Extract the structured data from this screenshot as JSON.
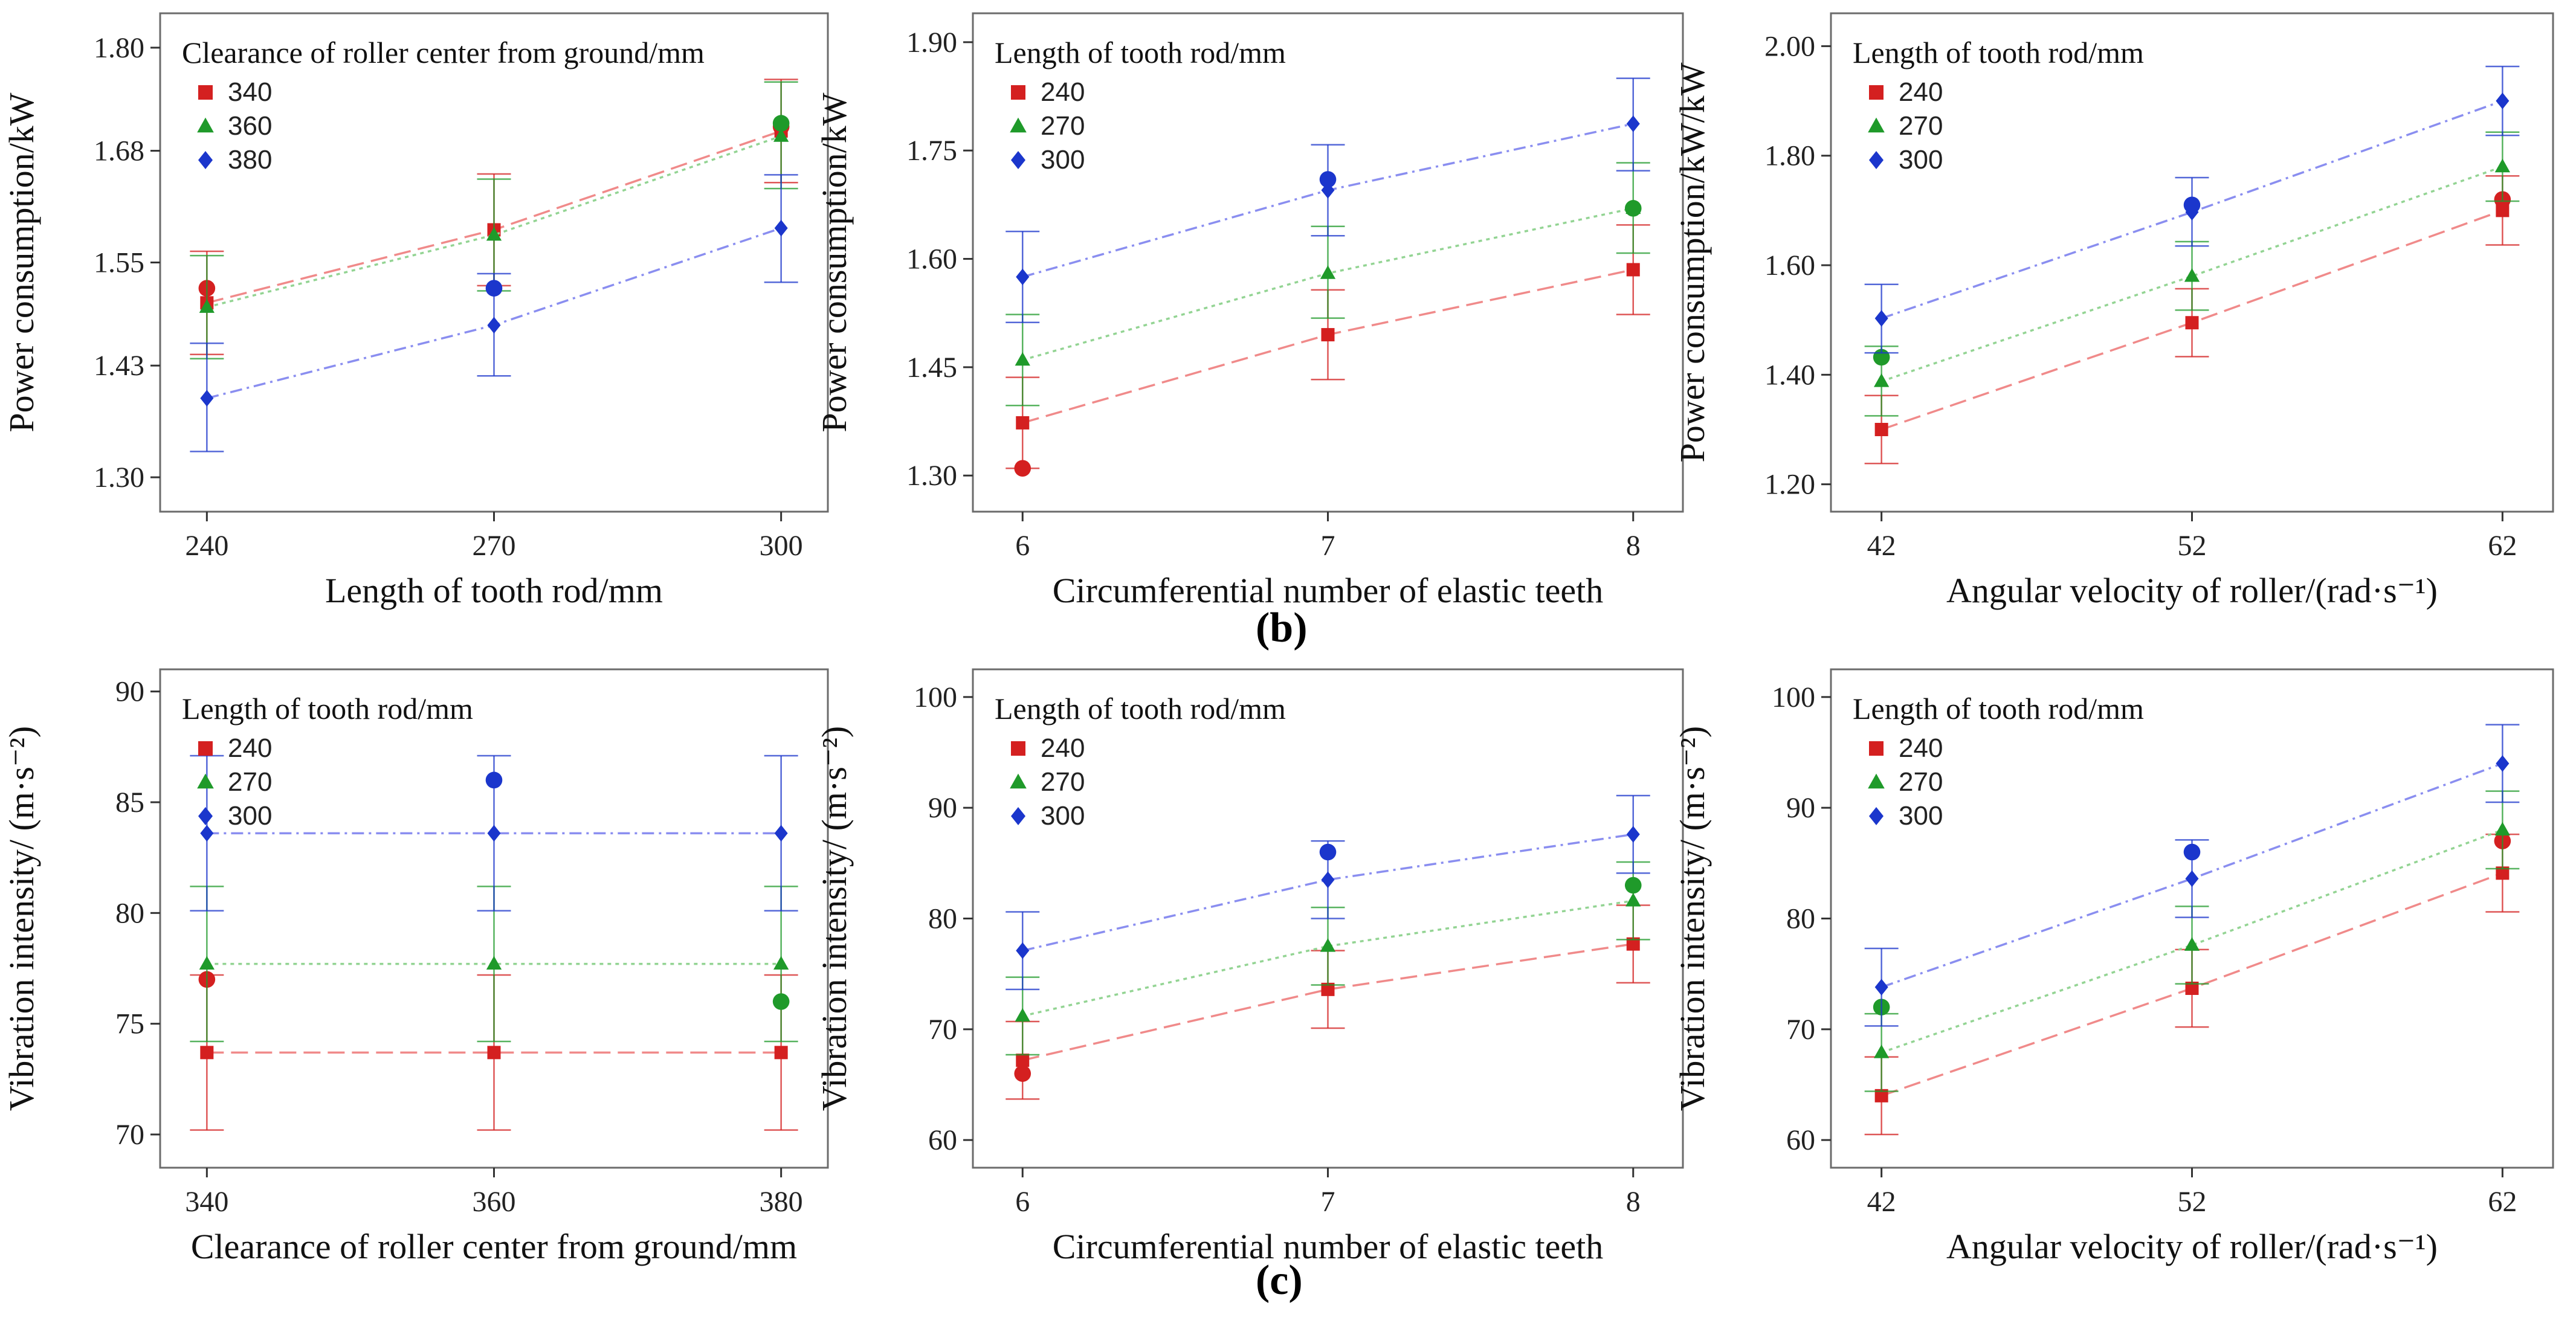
{
  "panel_labels": {
    "b": "(b)",
    "c": "(c)"
  },
  "colors": {
    "s1": "#d42020",
    "s2": "#1f9a2a",
    "s3": "#1b36cc",
    "s1_line": "#f08a8a",
    "s2_line": "#93d493",
    "s3_line": "#8a8ef0"
  },
  "chart_data": [
    {
      "id": "b1",
      "type": "line",
      "title": "",
      "xlabel": "Length of tooth rod/mm",
      "ylabel": "Power consumption/kW",
      "legend_title": "Clearance of roller center from ground/mm",
      "x": [
        240,
        270,
        300
      ],
      "x_tick_labels": [
        "240",
        "270",
        "300"
      ],
      "ylim": [
        1.26,
        1.84
      ],
      "y_ticks": [
        1.3,
        1.43,
        1.55,
        1.68,
        1.8
      ],
      "y_tick_labels": [
        "1.30",
        "1.43",
        "1.55",
        "1.68",
        "1.80"
      ],
      "series": [
        {
          "name": "340",
          "fit": [
            1.503,
            1.588,
            1.703
          ],
          "lo": [
            1.443,
            1.523,
            1.643
          ],
          "hi": [
            1.563,
            1.653,
            1.763
          ],
          "obs": [
            1.52,
            null,
            1.708
          ]
        },
        {
          "name": "360",
          "fit": [
            1.498,
            1.582,
            1.697
          ],
          "lo": [
            1.438,
            1.517,
            1.636
          ],
          "hi": [
            1.558,
            1.647,
            1.76
          ],
          "obs": [
            null,
            null,
            1.712
          ]
        },
        {
          "name": "380",
          "fit": [
            1.392,
            1.477,
            1.59
          ],
          "lo": [
            1.33,
            1.418,
            1.527
          ],
          "hi": [
            1.456,
            1.537,
            1.652
          ],
          "obs": [
            null,
            1.52,
            null
          ]
        }
      ]
    },
    {
      "id": "b2",
      "type": "line",
      "title": "",
      "xlabel": "Circumferential number of elastic teeth",
      "ylabel": "Power consumption/kW",
      "legend_title": "Length of tooth rod/mm",
      "x": [
        6,
        7,
        8
      ],
      "x_tick_labels": [
        "6",
        "7",
        "8"
      ],
      "ylim": [
        1.25,
        1.94
      ],
      "y_ticks": [
        1.3,
        1.45,
        1.6,
        1.75,
        1.9
      ],
      "y_tick_labels": [
        "1.30",
        "1.45",
        "1.60",
        "1.75",
        "1.90"
      ],
      "series": [
        {
          "name": "240",
          "fit": [
            1.373,
            1.495,
            1.585
          ],
          "lo": [
            1.31,
            1.433,
            1.523
          ],
          "hi": [
            1.436,
            1.557,
            1.647
          ],
          "obs": [
            1.31,
            null,
            null
          ]
        },
        {
          "name": "270",
          "fit": [
            1.46,
            1.58,
            1.67
          ],
          "lo": [
            1.397,
            1.518,
            1.608
          ],
          "hi": [
            1.523,
            1.645,
            1.733
          ],
          "obs": [
            null,
            null,
            1.67
          ]
        },
        {
          "name": "300",
          "fit": [
            1.575,
            1.695,
            1.787
          ],
          "lo": [
            1.512,
            1.632,
            1.722
          ],
          "hi": [
            1.638,
            1.758,
            1.85
          ],
          "obs": [
            null,
            1.71,
            null
          ]
        }
      ]
    },
    {
      "id": "b3",
      "type": "line",
      "title": "",
      "xlabel": "Angular velocity of roller/(rad·s⁻¹)",
      "ylabel": "Power consumption/kW/kW",
      "legend_title": "Length of tooth rod/mm",
      "x": [
        42,
        52,
        62
      ],
      "x_tick_labels": [
        "42",
        "52",
        "62"
      ],
      "ylim": [
        1.15,
        2.06
      ],
      "y_ticks": [
        1.2,
        1.4,
        1.6,
        1.8,
        2.0
      ],
      "y_tick_labels": [
        "1.20",
        "1.40",
        "1.60",
        "1.80",
        "2.00"
      ],
      "series": [
        {
          "name": "240",
          "fit": [
            1.3,
            1.495,
            1.7
          ],
          "lo": [
            1.238,
            1.433,
            1.637
          ],
          "hi": [
            1.362,
            1.557,
            1.763
          ],
          "obs": [
            null,
            null,
            1.72
          ]
        },
        {
          "name": "270",
          "fit": [
            1.388,
            1.58,
            1.78
          ],
          "lo": [
            1.325,
            1.518,
            1.717
          ],
          "hi": [
            1.452,
            1.643,
            1.843
          ],
          "obs": [
            1.432,
            null,
            null
          ]
        },
        {
          "name": "300",
          "fit": [
            1.503,
            1.697,
            1.9
          ],
          "lo": [
            1.44,
            1.635,
            1.837
          ],
          "hi": [
            1.565,
            1.76,
            1.963
          ],
          "obs": [
            null,
            1.71,
            null
          ]
        }
      ]
    },
    {
      "id": "c1",
      "type": "line",
      "title": "",
      "xlabel": "Clearance of roller center from ground/mm",
      "ylabel": "Vibration intensity/ (m·s⁻²)",
      "legend_title": "Length of tooth rod/mm",
      "x": [
        340,
        360,
        380
      ],
      "x_tick_labels": [
        "340",
        "360",
        "380"
      ],
      "ylim": [
        68.5,
        91
      ],
      "y_ticks": [
        70,
        75,
        80,
        85,
        90
      ],
      "y_tick_labels": [
        "70",
        "75",
        "80",
        "85",
        "90"
      ],
      "series": [
        {
          "name": "240",
          "fit": [
            73.7,
            73.7,
            73.7
          ],
          "lo": [
            70.2,
            70.2,
            70.2
          ],
          "hi": [
            77.2,
            77.2,
            77.2
          ],
          "obs": [
            77.0,
            null,
            null
          ]
        },
        {
          "name": "270",
          "fit": [
            77.7,
            77.7,
            77.7
          ],
          "lo": [
            74.2,
            74.2,
            74.2
          ],
          "hi": [
            81.2,
            81.2,
            81.2
          ],
          "obs": [
            null,
            null,
            76.0
          ]
        },
        {
          "name": "300",
          "fit": [
            83.6,
            83.6,
            83.6
          ],
          "lo": [
            80.1,
            80.1,
            80.1
          ],
          "hi": [
            87.1,
            87.1,
            87.1
          ],
          "obs": [
            null,
            86.0,
            null
          ]
        }
      ]
    },
    {
      "id": "c2",
      "type": "line",
      "title": "",
      "xlabel": "Circumferential number of elastic teeth",
      "ylabel": "Vibration intensity/ (m·s⁻²)",
      "legend_title": "Length of tooth rod/mm",
      "x": [
        6,
        7,
        8
      ],
      "x_tick_labels": [
        "6",
        "7",
        "8"
      ],
      "ylim": [
        57.5,
        102.5
      ],
      "y_ticks": [
        60,
        70,
        80,
        90,
        100
      ],
      "y_tick_labels": [
        "60",
        "70",
        "80",
        "90",
        "100"
      ],
      "series": [
        {
          "name": "240",
          "fit": [
            67.2,
            73.6,
            77.7
          ],
          "lo": [
            63.7,
            70.1,
            74.2
          ],
          "hi": [
            70.7,
            77.1,
            81.2
          ],
          "obs": [
            66.0,
            null,
            null
          ]
        },
        {
          "name": "270",
          "fit": [
            71.2,
            77.5,
            81.6
          ],
          "lo": [
            67.7,
            74.0,
            78.1
          ],
          "hi": [
            74.7,
            81.0,
            85.1
          ],
          "obs": [
            null,
            null,
            83.0
          ]
        },
        {
          "name": "300",
          "fit": [
            77.1,
            83.5,
            87.6
          ],
          "lo": [
            73.6,
            80.0,
            84.1
          ],
          "hi": [
            80.6,
            87.0,
            91.1
          ],
          "obs": [
            null,
            86.0,
            null
          ]
        }
      ]
    },
    {
      "id": "c3",
      "type": "line",
      "title": "",
      "xlabel": "Angular velocity of roller/(rad·s⁻¹)",
      "ylabel": "Vibration intensity/ (m·s⁻²)",
      "legend_title": "Length of tooth rod/mm",
      "x": [
        42,
        52,
        62
      ],
      "x_tick_labels": [
        "42",
        "52",
        "62"
      ],
      "ylim": [
        57.5,
        102.5
      ],
      "y_ticks": [
        60,
        70,
        80,
        90,
        100
      ],
      "y_tick_labels": [
        "60",
        "70",
        "80",
        "90",
        "100"
      ],
      "series": [
        {
          "name": "240",
          "fit": [
            64.0,
            73.7,
            84.1
          ],
          "lo": [
            60.5,
            70.2,
            80.6
          ],
          "hi": [
            67.5,
            77.2,
            87.6
          ],
          "obs": [
            null,
            null,
            87.0
          ]
        },
        {
          "name": "270",
          "fit": [
            67.9,
            77.6,
            88.0
          ],
          "lo": [
            64.4,
            74.1,
            84.5
          ],
          "hi": [
            71.4,
            81.1,
            91.5
          ],
          "obs": [
            72.0,
            null,
            null
          ]
        },
        {
          "name": "300",
          "fit": [
            73.8,
            83.6,
            94.0
          ],
          "lo": [
            70.3,
            80.1,
            90.5
          ],
          "hi": [
            77.3,
            87.1,
            97.5
          ],
          "obs": [
            null,
            86.0,
            null
          ]
        }
      ]
    }
  ]
}
